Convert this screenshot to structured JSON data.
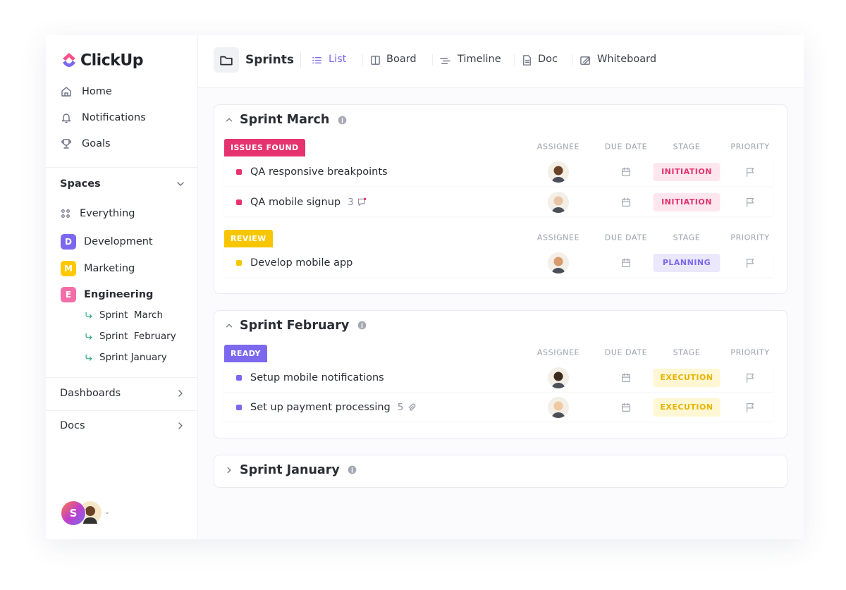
{
  "sidebar": {
    "logo": "ClickUp",
    "nav": [
      "Home",
      "Notifications",
      "Goals"
    ],
    "spaces_title": "Spaces",
    "everything": "Everything",
    "spaces": [
      {
        "initial": "D",
        "name": "Development",
        "color": "#7b68ee"
      },
      {
        "initial": "M",
        "name": "Marketing",
        "color": "#ffc800"
      },
      {
        "initial": "E",
        "name": "Engineering",
        "color": "#f36ea8",
        "lists": [
          "Sprint  March",
          "Sprint  February",
          "Sprint January"
        ]
      }
    ],
    "dashboards": "Dashboards",
    "docs": "Docs",
    "avatar": "S"
  },
  "header": {
    "title": "Sprints",
    "tabs": [
      "List",
      "Board",
      "Timeline",
      "Doc",
      "Whiteboard"
    ]
  },
  "sprints": [
    {
      "name": "Sprint March",
      "groups": [
        {
          "status": "ISSUES FOUND",
          "color": "#e5336f",
          "columns": [
            "ASSIGNEE",
            "DUE DATE",
            "STAGE",
            "PRIORITY"
          ],
          "tasks": [
            {
              "name": "QA responsive breakpoints",
              "stage": {
                "label": "INITIATION",
                "color": "#e0336d",
                "bg": "#fde6ee"
              }
            },
            {
              "name": "QA mobile signup",
              "comments": 3,
              "stage": {
                "label": "INITIATION",
                "color": "#e0336d",
                "bg": "#fde6ee"
              }
            }
          ]
        },
        {
          "status": "REVIEW",
          "color": "#f7c600",
          "columns": [
            "ASSIGNEE",
            "DUE DATE",
            "STAGE",
            "PRIORITY"
          ],
          "tasks": [
            {
              "name": "Develop mobile app",
              "stage": {
                "label": "PLANNING",
                "color": "#7b68ee",
                "bg": "#ebe7fc"
              }
            }
          ]
        }
      ]
    },
    {
      "name": "Sprint February",
      "groups": [
        {
          "status": "READY",
          "color": "#7b68ee",
          "columns": [
            "ASSIGNEE",
            "DUE DATE",
            "STAGE",
            "PRIORITY"
          ],
          "tasks": [
            {
              "name": "Setup mobile notifications",
              "stage": {
                "label": "EXECUTION",
                "color": "#e6b400",
                "bg": "#fff6d3"
              }
            },
            {
              "name": "Set up payment processing",
              "attachments": 5,
              "stage": {
                "label": "EXECUTION",
                "color": "#e6b400",
                "bg": "#fff6d3"
              }
            }
          ]
        }
      ]
    },
    {
      "name": "Sprint January",
      "groups": []
    }
  ]
}
